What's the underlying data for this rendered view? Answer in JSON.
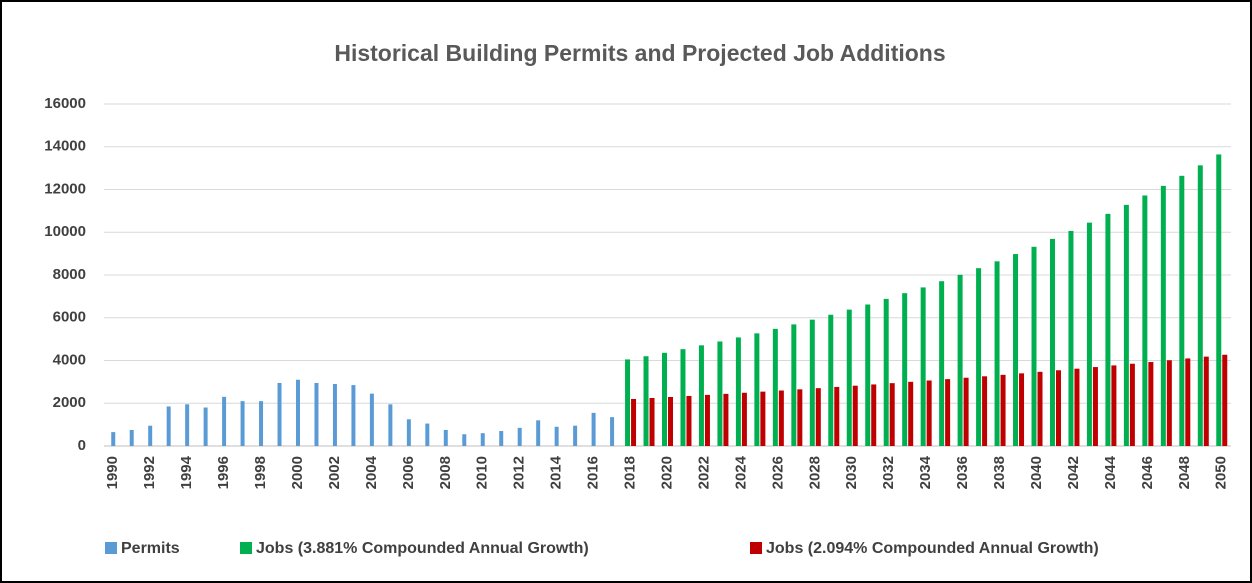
{
  "chart_data": {
    "type": "bar",
    "title": "Historical Building Permits and Projected Job Additions",
    "categories": [
      "1990",
      null,
      "1992",
      null,
      "1994",
      null,
      "1996",
      null,
      "1998",
      null,
      "2000",
      null,
      "2002",
      null,
      "2004",
      null,
      "2006",
      null,
      "2008",
      null,
      "2010",
      null,
      "2012",
      null,
      "2014",
      null,
      "2016",
      null,
      "2018",
      null,
      "2020",
      null,
      "2022",
      null,
      "2024",
      null,
      "2026",
      null,
      "2028",
      null,
      "2030",
      null,
      "2032",
      null,
      "2034",
      null,
      "2036",
      null,
      "2038",
      null,
      "2040",
      null,
      "2042",
      null,
      "2044",
      null,
      "2046",
      null,
      "2048",
      null,
      "2050"
    ],
    "series": [
      {
        "name": "Permits",
        "color": "#5b9bd5",
        "values": [
          650,
          750,
          950,
          1850,
          1950,
          1800,
          2300,
          2100,
          2100,
          2950,
          3100,
          2950,
          2900,
          2850,
          2450,
          1950,
          1250,
          1050,
          750,
          550,
          600,
          700,
          850,
          1200,
          900,
          950,
          1550,
          1350,
          null,
          null,
          null,
          null,
          null,
          null,
          null,
          null,
          null,
          null,
          null,
          null,
          null,
          null,
          null,
          null,
          null,
          null,
          null,
          null,
          null,
          null,
          null,
          null,
          null,
          null,
          null,
          null,
          null,
          null,
          null,
          null,
          null
        ]
      },
      {
        "name": "Jobs (3.881% Compounded Annual Growth)",
        "color": "#00b050",
        "values": [
          null,
          null,
          null,
          null,
          null,
          null,
          null,
          null,
          null,
          null,
          null,
          null,
          null,
          null,
          null,
          null,
          null,
          null,
          null,
          null,
          null,
          null,
          null,
          null,
          null,
          null,
          null,
          null,
          4050,
          4200,
          4360,
          4530,
          4710,
          4890,
          5080,
          5270,
          5480,
          5690,
          5910,
          6140,
          6380,
          6620,
          6880,
          7150,
          7420,
          7710,
          8010,
          8320,
          8640,
          8980,
          9320,
          9690,
          10060,
          10450,
          10860,
          11280,
          11720,
          12170,
          12640,
          13130,
          13640
        ]
      },
      {
        "name": "Jobs (2.094% Compounded Annual Growth)",
        "color": "#c00000",
        "values": [
          null,
          null,
          null,
          null,
          null,
          null,
          null,
          null,
          null,
          null,
          null,
          null,
          null,
          null,
          null,
          null,
          null,
          null,
          null,
          null,
          null,
          null,
          null,
          null,
          null,
          null,
          null,
          null,
          2200,
          2246,
          2293,
          2341,
          2390,
          2440,
          2491,
          2543,
          2596,
          2651,
          2706,
          2763,
          2821,
          2880,
          2940,
          3002,
          3064,
          3129,
          3194,
          3261,
          3329,
          3399,
          3470,
          3543,
          3617,
          3693,
          3770,
          3849,
          3929,
          4012,
          4096,
          4181,
          4269
        ]
      }
    ],
    "ylim": [
      0,
      16000
    ],
    "yticks": [
      0,
      2000,
      4000,
      6000,
      8000,
      10000,
      12000,
      14000,
      16000
    ],
    "grid": true,
    "legend": "bottom"
  }
}
